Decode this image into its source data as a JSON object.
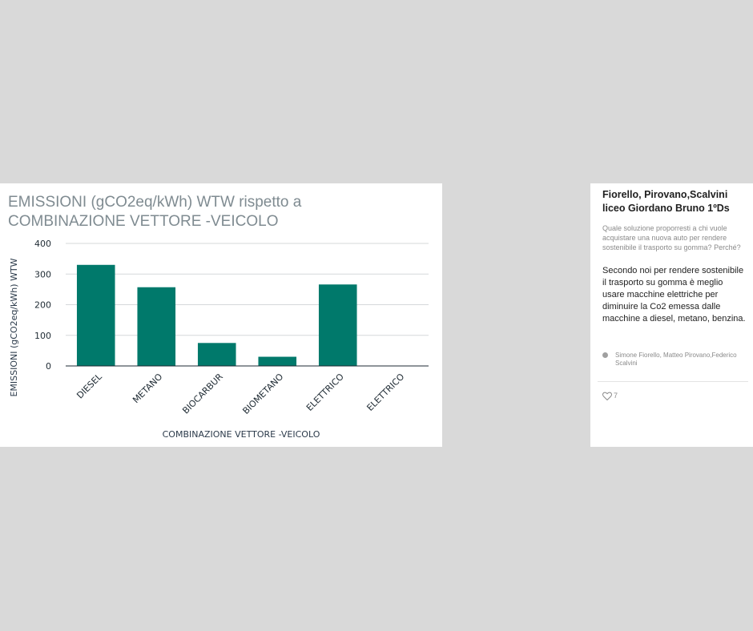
{
  "chart_data": {
    "type": "bar",
    "title": "EMISSIONI (gCO2eq/kWh) WTW rispetto a COMBINAZIONE VETTORE -VEICOLO",
    "title_lines": [
      "EMISSIONI (gCO2eq/kWh) WTW rispetto a",
      "COMBINAZIONE VETTORE -VEICOLO"
    ],
    "xlabel": "COMBINAZIONE VETTORE -VEICOLO",
    "ylabel": "EMISSIONI (gCO2eq/kWh) WTW",
    "categories": [
      "DIESEL",
      "METANO",
      "BIOCARBUR",
      "BIOMETANO",
      "ELETTRICO",
      "ELETTRICO"
    ],
    "values": [
      330,
      257,
      75,
      30,
      266,
      0
    ],
    "ylim": [
      0,
      400
    ],
    "yticks": [
      0,
      100,
      200,
      300,
      400
    ],
    "grid": true,
    "bar_color": "#00796b"
  },
  "post": {
    "title": "Fiorello, Pirovano,Scalvini\nliceo Giordano Bruno 1ºDs",
    "question": "Quale soluzione proporresti a chi vuole acquistare una nuova auto per rendere sostenibile il trasporto su gomma? Perché?",
    "answer": "Secondo noi per rendere sostenibile il trasporto su gomma è meglio usare macchine elettriche per diminuire la Co2 emessa dalle macchine a diesel, metano,  benzina.",
    "author": "Simone Fiorello, Matteo Pirovano,Federico Scalvini",
    "likes": "7"
  }
}
